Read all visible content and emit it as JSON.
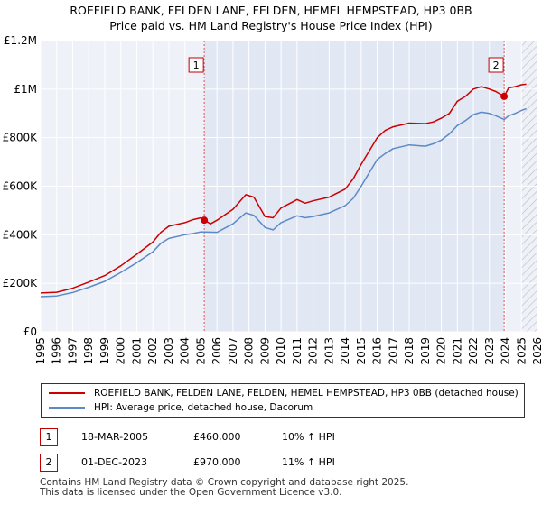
{
  "header": {
    "title_line1": "ROEFIELD BANK, FELDEN LANE, FELDEN, HEMEL HEMPSTEAD, HP3 0BB",
    "title_line2": "Price paid vs. HM Land Registry's House Price Index (HPI)"
  },
  "chart_data": {
    "type": "line",
    "x_range": [
      1995,
      2026
    ],
    "ylim": [
      0,
      1200000
    ],
    "y_ticks": [
      {
        "value": 0,
        "label": "£0"
      },
      {
        "value": 200000,
        "label": "£200K"
      },
      {
        "value": 400000,
        "label": "£400K"
      },
      {
        "value": 600000,
        "label": "£600K"
      },
      {
        "value": 800000,
        "label": "£800K"
      },
      {
        "value": 1000000,
        "label": "£1M"
      },
      {
        "value": 1200000,
        "label": "£1.2M"
      }
    ],
    "x_ticks": [
      "1995",
      "1996",
      "1997",
      "1998",
      "1999",
      "2000",
      "2001",
      "2002",
      "2003",
      "2004",
      "2005",
      "2006",
      "2007",
      "2008",
      "2009",
      "2010",
      "2011",
      "2012",
      "2013",
      "2014",
      "2015",
      "2016",
      "2017",
      "2018",
      "2019",
      "2020",
      "2021",
      "2022",
      "2023",
      "2024",
      "2025",
      "2026"
    ],
    "series": [
      {
        "name": "ROEFIELD BANK, FELDEN LANE, FELDEN, HEMEL HEMPSTEAD, HP3 0BB (detached house)",
        "color": "#cc0000",
        "points": [
          [
            1995.0,
            160000
          ],
          [
            1996.0,
            163000
          ],
          [
            1997.0,
            180000
          ],
          [
            1998.0,
            205000
          ],
          [
            1999.0,
            232000
          ],
          [
            2000.0,
            272000
          ],
          [
            2001.0,
            320000
          ],
          [
            2002.0,
            370000
          ],
          [
            2002.5,
            410000
          ],
          [
            2003.0,
            435000
          ],
          [
            2004.0,
            450000
          ],
          [
            2004.5,
            462000
          ],
          [
            2005.0,
            470000
          ],
          [
            2005.21,
            460000
          ],
          [
            2005.6,
            445000
          ],
          [
            2006.0,
            460000
          ],
          [
            2007.0,
            505000
          ],
          [
            2007.8,
            565000
          ],
          [
            2008.3,
            555000
          ],
          [
            2009.0,
            475000
          ],
          [
            2009.5,
            470000
          ],
          [
            2010.0,
            510000
          ],
          [
            2011.0,
            545000
          ],
          [
            2011.5,
            530000
          ],
          [
            2012.0,
            540000
          ],
          [
            2013.0,
            555000
          ],
          [
            2014.0,
            588000
          ],
          [
            2014.5,
            630000
          ],
          [
            2015.0,
            690000
          ],
          [
            2016.0,
            800000
          ],
          [
            2016.5,
            830000
          ],
          [
            2017.0,
            845000
          ],
          [
            2018.0,
            860000
          ],
          [
            2019.0,
            858000
          ],
          [
            2019.5,
            865000
          ],
          [
            2020.0,
            880000
          ],
          [
            2020.5,
            900000
          ],
          [
            2021.0,
            950000
          ],
          [
            2021.5,
            970000
          ],
          [
            2022.0,
            1000000
          ],
          [
            2022.5,
            1010000
          ],
          [
            2023.0,
            1000000
          ],
          [
            2023.4,
            990000
          ],
          [
            2023.92,
            970000
          ],
          [
            2024.2,
            1005000
          ],
          [
            2024.6,
            1010000
          ],
          [
            2025.0,
            1018000
          ],
          [
            2025.3,
            1020000
          ]
        ]
      },
      {
        "name": "HPI: Average price, detached house, Dacorum",
        "color": "#5b8ac6",
        "points": [
          [
            1995.0,
            145000
          ],
          [
            1996.0,
            148000
          ],
          [
            1997.0,
            162000
          ],
          [
            1998.0,
            184000
          ],
          [
            1999.0,
            208000
          ],
          [
            2000.0,
            245000
          ],
          [
            2001.0,
            285000
          ],
          [
            2002.0,
            330000
          ],
          [
            2002.5,
            365000
          ],
          [
            2003.0,
            385000
          ],
          [
            2004.0,
            400000
          ],
          [
            2004.5,
            405000
          ],
          [
            2005.0,
            412000
          ],
          [
            2006.0,
            410000
          ],
          [
            2007.0,
            445000
          ],
          [
            2007.8,
            490000
          ],
          [
            2008.3,
            480000
          ],
          [
            2009.0,
            430000
          ],
          [
            2009.5,
            420000
          ],
          [
            2010.0,
            450000
          ],
          [
            2011.0,
            478000
          ],
          [
            2011.5,
            470000
          ],
          [
            2012.0,
            475000
          ],
          [
            2013.0,
            490000
          ],
          [
            2014.0,
            520000
          ],
          [
            2014.5,
            550000
          ],
          [
            2015.0,
            600000
          ],
          [
            2016.0,
            710000
          ],
          [
            2016.5,
            735000
          ],
          [
            2017.0,
            755000
          ],
          [
            2018.0,
            770000
          ],
          [
            2019.0,
            765000
          ],
          [
            2019.5,
            775000
          ],
          [
            2020.0,
            790000
          ],
          [
            2020.5,
            815000
          ],
          [
            2021.0,
            850000
          ],
          [
            2021.5,
            870000
          ],
          [
            2022.0,
            895000
          ],
          [
            2022.5,
            905000
          ],
          [
            2023.0,
            900000
          ],
          [
            2023.4,
            890000
          ],
          [
            2023.92,
            875000
          ],
          [
            2024.2,
            890000
          ],
          [
            2024.6,
            900000
          ],
          [
            2025.0,
            912000
          ],
          [
            2025.3,
            920000
          ]
        ]
      }
    ],
    "sales": [
      {
        "label": "1",
        "x": 2005.21,
        "value": 460000
      },
      {
        "label": "2",
        "x": 2023.92,
        "value": 970000
      }
    ],
    "future_from": 2025.0
  },
  "legend": {
    "items": [
      {
        "label": "ROEFIELD BANK, FELDEN LANE, FELDEN, HEMEL HEMPSTEAD, HP3 0BB (detached house)",
        "color": "#cc0000"
      },
      {
        "label": "HPI: Average price, detached house, Dacorum",
        "color": "#5b8ac6"
      }
    ]
  },
  "transactions": [
    {
      "num": "1",
      "date": "18-MAR-2005",
      "price": "£460,000",
      "hpi": "10% ↑ HPI"
    },
    {
      "num": "2",
      "date": "01-DEC-2023",
      "price": "£970,000",
      "hpi": "11% ↑ HPI"
    }
  ],
  "footer": {
    "line1": "Contains HM Land Registry data © Crown copyright and database right 2025.",
    "line2": "This data is licensed under the Open Government Licence v3.0."
  }
}
